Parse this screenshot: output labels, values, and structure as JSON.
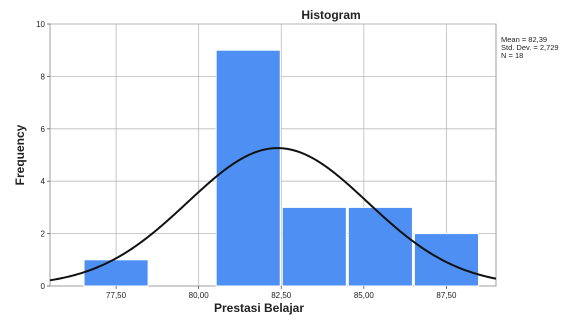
{
  "chart_data": {
    "type": "bar",
    "title": "Histogram",
    "xlabel": "Prestasi Belajar",
    "ylabel": "Frequency",
    "xlim": [
      75.5,
      89.0
    ],
    "ylim": [
      0,
      10
    ],
    "x_ticks": [
      {
        "value": 77.5,
        "label": "77,50"
      },
      {
        "value": 80.0,
        "label": "80,00"
      },
      {
        "value": 82.5,
        "label": "82,50"
      },
      {
        "value": 85.0,
        "label": "85,00"
      },
      {
        "value": 87.5,
        "label": "87,50"
      }
    ],
    "y_ticks": [
      {
        "value": 0,
        "label": "0"
      },
      {
        "value": 2,
        "label": "2"
      },
      {
        "value": 4,
        "label": "4"
      },
      {
        "value": 6,
        "label": "6"
      },
      {
        "value": 8,
        "label": "8"
      },
      {
        "value": 10,
        "label": "10"
      }
    ],
    "bins": [
      {
        "start": 76.5,
        "end": 78.5,
        "frequency": 1
      },
      {
        "start": 78.5,
        "end": 80.5,
        "frequency": 0
      },
      {
        "start": 80.5,
        "end": 82.5,
        "frequency": 9
      },
      {
        "start": 82.5,
        "end": 84.5,
        "frequency": 3
      },
      {
        "start": 84.5,
        "end": 86.5,
        "frequency": 3
      },
      {
        "start": 86.5,
        "end": 88.5,
        "frequency": 2
      }
    ],
    "normal_curve": {
      "mean": 82.39,
      "std_dev": 2.729,
      "n": 18
    },
    "stats_text": [
      "Mean = 82,39",
      "Std. Dev. = 2,729",
      "N = 18"
    ],
    "grid": true,
    "bar_color": "#4d8ff2",
    "curve_color": "#111111"
  }
}
